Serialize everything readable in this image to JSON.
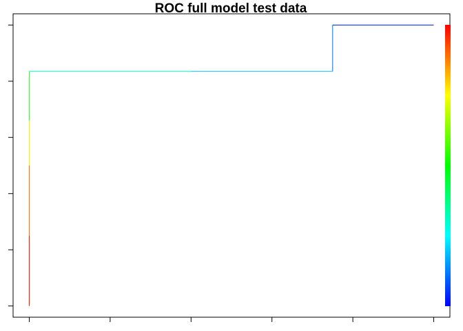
{
  "chart_data": {
    "type": "line",
    "title": "ROC full model test data",
    "xlabel": "",
    "ylabel": "",
    "xlim": [
      -0.04,
      1.04
    ],
    "ylim": [
      -0.04,
      1.04
    ],
    "x_ticks": [
      0,
      0.2,
      0.4,
      0.6,
      0.8,
      1.0
    ],
    "y_ticks": [
      0,
      0.2,
      0.4,
      0.6,
      0.8,
      1.0
    ],
    "tick_labels_shown": false,
    "grid": false,
    "colorized": true,
    "colorbar": {
      "placement": "right",
      "colors": [
        "#0000ff",
        "#00ffff",
        "#00ff00",
        "#ffff00",
        "#ff0000"
      ]
    },
    "series": [
      {
        "segments": [
          {
            "x": [
              0.0,
              0.0
            ],
            "y": [
              0.0,
              0.25
            ],
            "color": "#ff2200"
          },
          {
            "x": [
              0.0,
              0.0
            ],
            "y": [
              0.25,
              0.5
            ],
            "color": "#ff7700"
          },
          {
            "x": [
              0.0,
              0.0
            ],
            "y": [
              0.5,
              0.66
            ],
            "color": "#ffee00"
          },
          {
            "x": [
              0.0,
              0.0
            ],
            "y": [
              0.66,
              0.835
            ],
            "color": "#33ff33"
          },
          {
            "x": [
              0.0,
              0.4
            ],
            "y": [
              0.835,
              0.835
            ],
            "color": "#33ffcc"
          },
          {
            "x": [
              0.4,
              0.75
            ],
            "y": [
              0.835,
              0.835
            ],
            "color": "#33ccff"
          },
          {
            "x": [
              0.75,
              0.75
            ],
            "y": [
              0.835,
              1.0
            ],
            "color": "#1a88ff"
          },
          {
            "x": [
              0.75,
              1.0
            ],
            "y": [
              1.0,
              1.0
            ],
            "color": "#0033ee"
          }
        ]
      }
    ]
  }
}
